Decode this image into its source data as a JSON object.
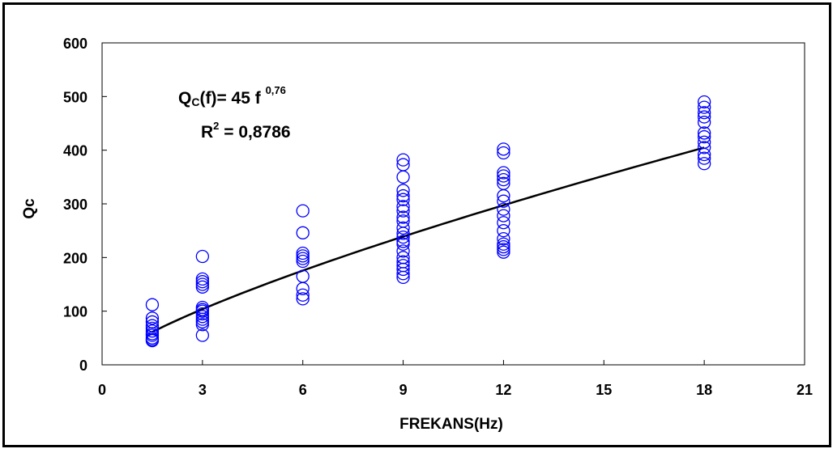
{
  "chart_data": {
    "type": "scatter",
    "xlabel": "FREKANS(Hz)",
    "ylabel": "Qc",
    "xlim": [
      0,
      21
    ],
    "ylim": [
      0,
      600
    ],
    "xticks": [
      "0",
      "3",
      "6",
      "9",
      "12",
      "15",
      "18",
      "21"
    ],
    "yticks": [
      "0",
      "100",
      "200",
      "300",
      "400",
      "500",
      "600"
    ],
    "grid": false,
    "point_color": "#0000ff",
    "line_color": "#000000",
    "annotations": {
      "eq_q": "Q",
      "eq_c": "C",
      "eq_mid": "(f)= 45 f ",
      "eq_exp": "0,76",
      "r2_r": "R",
      "r2_sup": "2",
      "r2_val": " = 0,8786"
    },
    "series": [
      {
        "values_by_x": [
          {
            "x": 1.5,
            "y": [
              112,
              87,
              80,
              73,
              68,
              63,
              58,
              55,
              50,
              47,
              45
            ]
          },
          {
            "x": 3,
            "y": [
              202,
              160,
              155,
              150,
              145,
              107,
              103,
              100,
              95,
              90,
              85,
              80,
              75,
              55
            ]
          },
          {
            "x": 6,
            "y": [
              287,
              246,
              208,
              203,
              198,
              193,
              165,
              142,
              130,
              123
            ]
          },
          {
            "x": 9,
            "y": [
              382,
              373,
              350,
              325,
              315,
              308,
              295,
              287,
              275,
              268,
              255,
              245,
              238,
              230,
              225,
              212,
              200,
              192,
              185,
              178,
              170,
              163
            ]
          },
          {
            "x": 12,
            "y": [
              402,
              395,
              358,
              352,
              345,
              338,
              315,
              305,
              290,
              278,
              265,
              250,
              235,
              225,
              220,
              215,
              210
            ]
          },
          {
            "x": 18,
            "y": [
              490,
              480,
              470,
              462,
              452,
              432,
              425,
              415,
              405,
              392,
              385,
              375
            ]
          }
        ]
      },
      {
        "fit": "power",
        "coefficient": 45,
        "exponent": 0.76,
        "x_range": [
          1.5,
          18
        ]
      }
    ]
  }
}
